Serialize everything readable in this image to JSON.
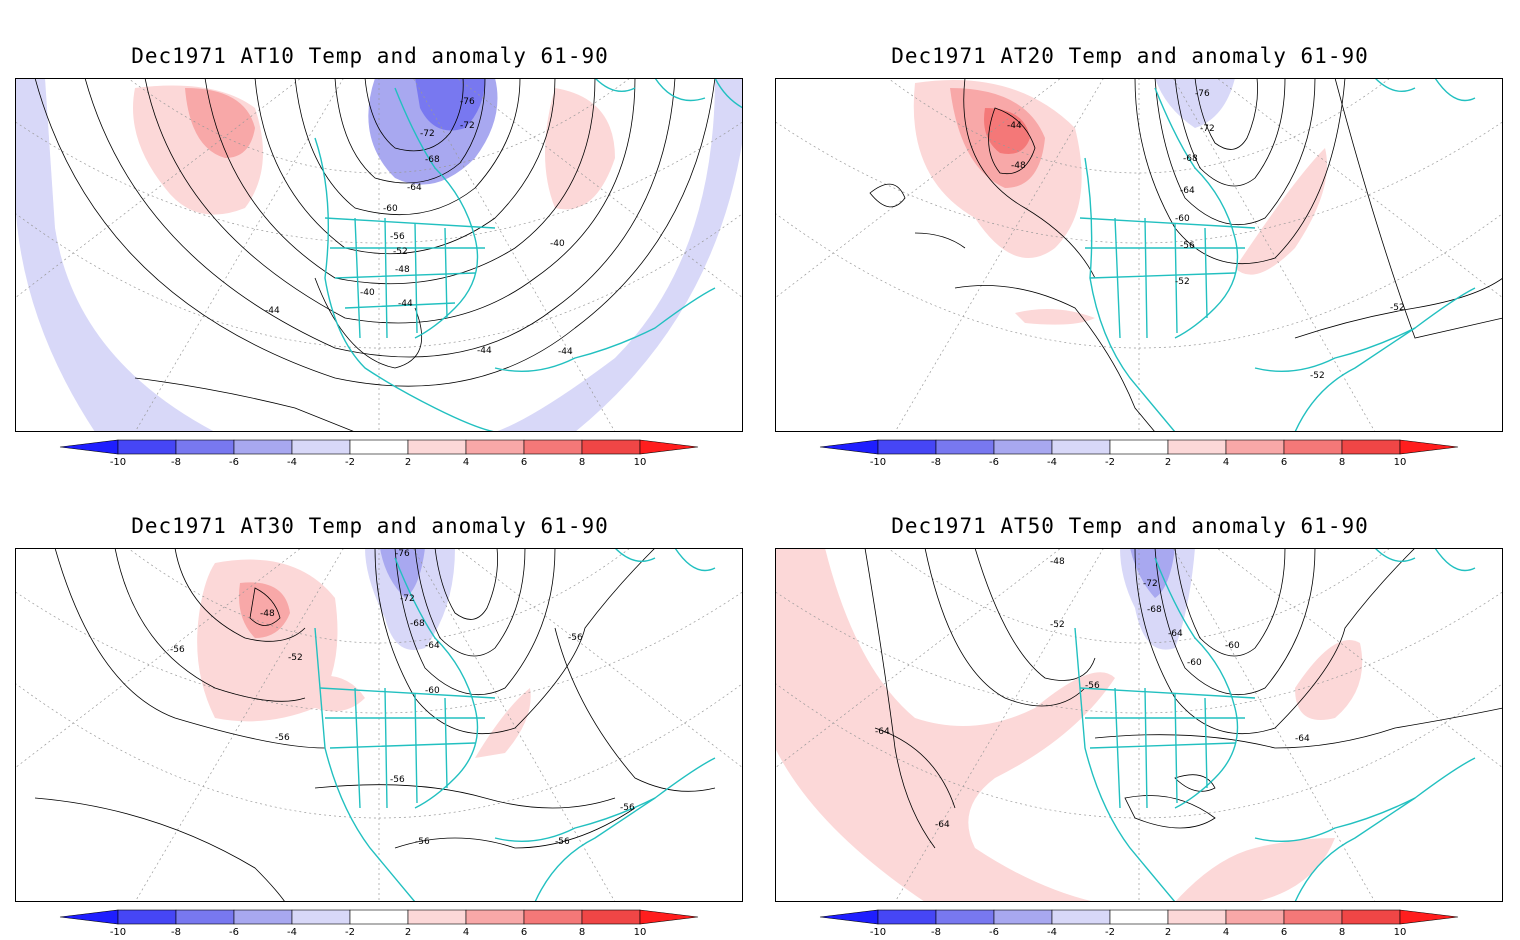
{
  "panels": [
    {
      "title": "Dec1971 AT10 Temp and anomaly 61-90",
      "labels": [
        "-76",
        "-72",
        "-68",
        "-64",
        "-60",
        "-56",
        "-52",
        "-48",
        "-40",
        "-44",
        "-40",
        "-44",
        "-44",
        "-44"
      ]
    },
    {
      "title": "Dec1971 AT20 Temp and anomaly 61-90",
      "labels": [
        "-76",
        "-72",
        "-68",
        "-64",
        "-60",
        "-56",
        "-52",
        "-44",
        "-48",
        "-52",
        "-52"
      ]
    },
    {
      "title": "Dec1971 AT30 Temp and anomaly 61-90",
      "labels": [
        "-76",
        "-72",
        "-68",
        "-64",
        "-60",
        "-48",
        "-52",
        "-56",
        "-56",
        "-56",
        "-56",
        "-56",
        "-56",
        "-56"
      ]
    },
    {
      "title": "Dec1971 AT50 Temp and anomaly 61-90",
      "labels": [
        "-48",
        "-72",
        "-68",
        "-64",
        "-60",
        "-60",
        "-52",
        "-56",
        "-64",
        "-64",
        "-64"
      ]
    }
  ],
  "colorbar": {
    "ticks": [
      "-10",
      "-8",
      "-6",
      "-4",
      "-2",
      "2",
      "4",
      "6",
      "8",
      "10"
    ],
    "colors": [
      "#1e1eff",
      "#4646f5",
      "#7878f0",
      "#a8a8f0",
      "#d8d8f8",
      "#ffffff",
      "#fcd8d8",
      "#f8a8a8",
      "#f47878",
      "#f04646",
      "#ff1e1e"
    ]
  },
  "colors": {
    "coast": "#22c0c0",
    "contour": "#000000",
    "grid": "#999999"
  }
}
